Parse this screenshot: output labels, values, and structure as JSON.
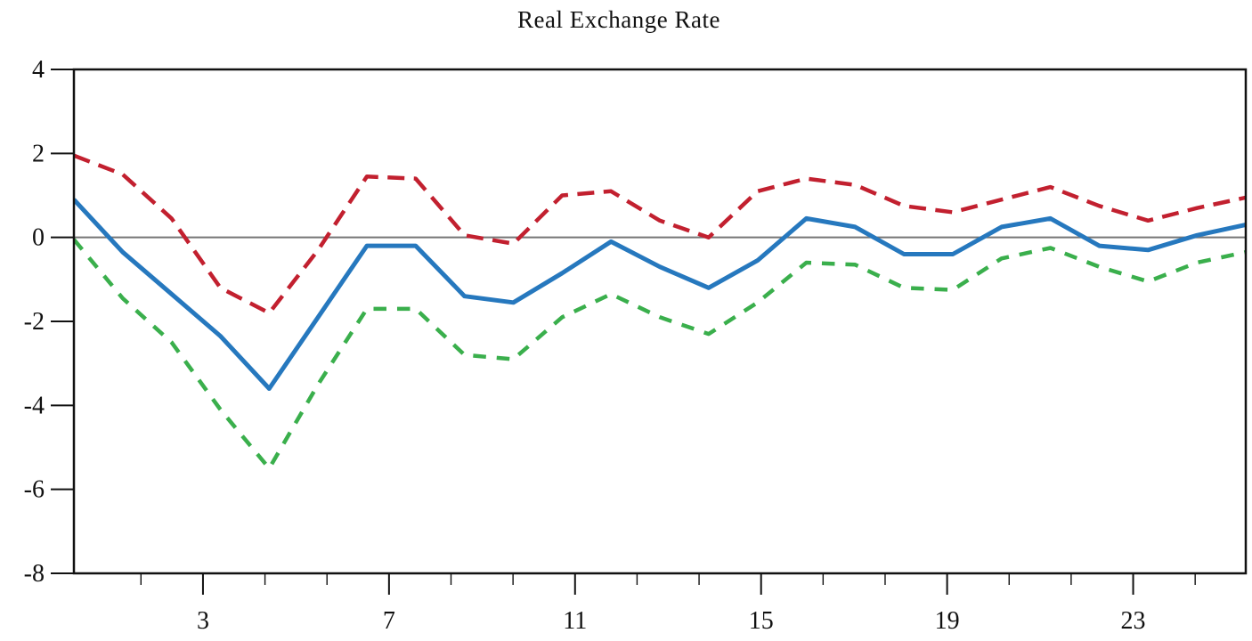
{
  "chart_data": {
    "type": "line",
    "title": "Real Exchange Rate",
    "x": [
      1,
      2,
      3,
      4,
      5,
      6,
      7,
      8,
      9,
      10,
      11,
      12,
      13,
      14,
      15,
      16,
      17,
      18,
      19,
      20,
      21,
      22,
      23,
      24,
      25
    ],
    "xlim": [
      1,
      25
    ],
    "ylim": [
      -8,
      4
    ],
    "x_tick_labels": [
      "3",
      "7",
      "11",
      "15",
      "19",
      "23"
    ],
    "y_tick_labels": [
      "4",
      "2",
      "0",
      "-2",
      "-4",
      "-6",
      "-8"
    ],
    "y_ticks": [
      4,
      2,
      0,
      -2,
      -4,
      -6,
      -8
    ],
    "grid": "horizontal-zero-line-only",
    "legend": "none",
    "series": [
      {
        "name": "red-dashed-upper-band",
        "style": "dashed",
        "color": "#C2202F",
        "values": [
          1.95,
          1.5,
          0.45,
          -1.2,
          -1.8,
          -0.3,
          1.45,
          1.4,
          0.05,
          -0.15,
          1.0,
          1.1,
          0.4,
          0.0,
          1.1,
          1.4,
          1.25,
          0.75,
          0.6,
          0.9,
          1.2,
          0.75,
          0.4,
          0.7,
          0.95
        ]
      },
      {
        "name": "green-dashed-lower-band",
        "style": "dashed",
        "color": "#3AAF4C",
        "values": [
          -0.05,
          -1.45,
          -2.5,
          -4.1,
          -5.5,
          -3.5,
          -1.7,
          -1.7,
          -2.8,
          -2.9,
          -1.9,
          -1.35,
          -1.9,
          -2.3,
          -1.55,
          -0.6,
          -0.65,
          -1.2,
          -1.25,
          -0.5,
          -0.25,
          -0.7,
          -1.05,
          -0.6,
          -0.35
        ]
      },
      {
        "name": "blue-solid-response",
        "style": "solid",
        "color": "#2678BE",
        "values": [
          0.9,
          -0.35,
          -1.35,
          -2.35,
          -3.6,
          -1.9,
          -0.2,
          -0.2,
          -1.4,
          -1.55,
          -0.85,
          -0.1,
          -0.7,
          -1.2,
          -0.55,
          0.45,
          0.25,
          -0.4,
          -0.4,
          0.25,
          0.45,
          -0.2,
          -0.3,
          0.05,
          0.3
        ]
      }
    ],
    "colors": {
      "axis": "#111111",
      "zero_line": "#757575",
      "background": "#FFFFFF"
    }
  }
}
